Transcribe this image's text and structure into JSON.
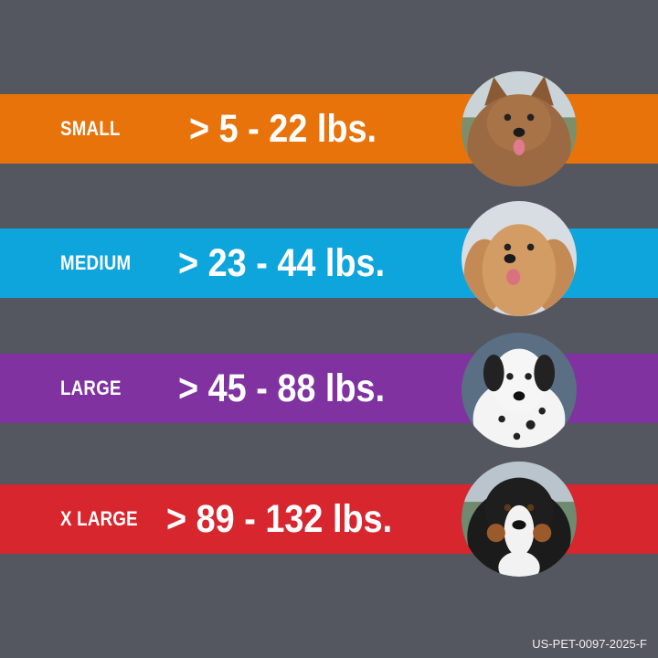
{
  "sizes": [
    {
      "label": "SMALL",
      "range": "> 5 - 22 lbs.",
      "color": "#e8730a",
      "icon": "terrier-dog-photo"
    },
    {
      "label": "MEDIUM",
      "range": "> 23 - 44 lbs.",
      "color": "#0ea5dc",
      "icon": "cocker-spaniel-dog-photo"
    },
    {
      "label": "LARGE",
      "range": "> 45 - 88 lbs.",
      "color": "#7f32a0",
      "icon": "dalmatian-dog-photo"
    },
    {
      "label": "X LARGE",
      "range": "> 89 - 132 lbs.",
      "color": "#d8262e",
      "icon": "bernese-mountain-dog-photo"
    }
  ],
  "footer_code": "US-PET-0097-2025-F",
  "background": "#545660"
}
